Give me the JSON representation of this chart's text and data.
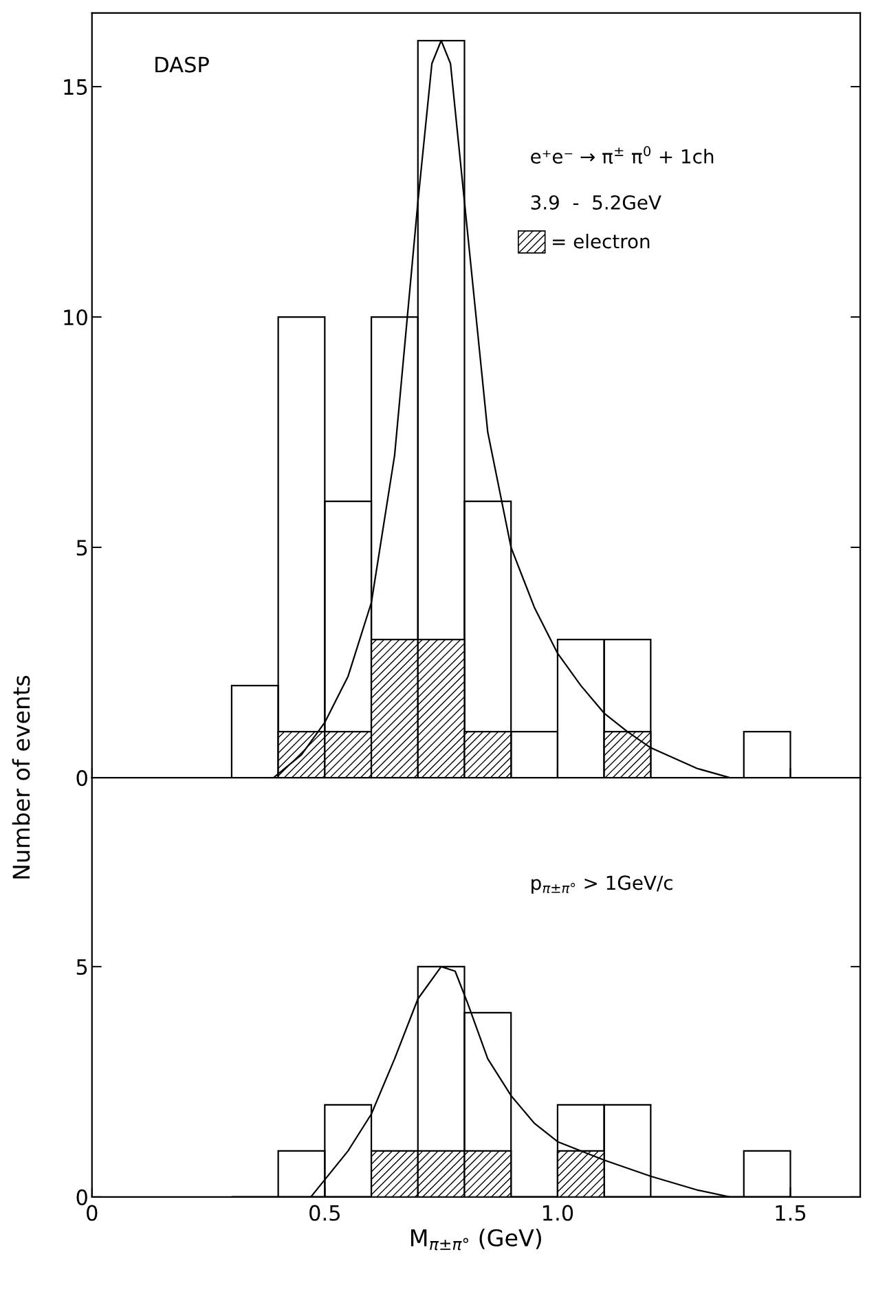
{
  "chart_data": [
    {
      "type": "histogram",
      "ylabel": "Number of events",
      "bins": [
        0.3,
        0.4,
        0.5,
        0.6,
        0.7,
        0.8,
        0.9,
        1.0,
        1.1,
        1.2,
        1.3,
        1.4,
        1.5
      ],
      "xlim": [
        0,
        1.65
      ],
      "ylim": [
        0,
        16.6
      ],
      "xticks": [
        {
          "value": 0,
          "label": null
        },
        {
          "value": 0.5,
          "label": null
        },
        {
          "value": 1.0,
          "label": null
        },
        {
          "value": 1.5,
          "label": null
        }
      ],
      "yticks": [
        0,
        5,
        10,
        15
      ],
      "tick_labels": "y",
      "grid": false,
      "legend": "top right",
      "marker": "none",
      "annotations": [
        "DASP",
        "e⁺e⁻ → π$^{±}$ π$^{0}$ + 1ch",
        "3.9  -  5.2GeV"
      ],
      "series": [
        {
          "type": "histogram",
          "color": "#000000",
          "values": [
            2,
            10,
            6,
            10,
            16,
            6,
            1,
            3,
            3,
            0,
            0,
            1
          ]
        },
        {
          "type": "histogram",
          "name": "= electron",
          "color": "#000000",
          "values": [
            0,
            1,
            1,
            3,
            3,
            1,
            0,
            0,
            1,
            0,
            0,
            0
          ]
        },
        {
          "type": "line",
          "color": "#000000",
          "x": [
            0.39,
            0.45,
            0.5,
            0.55,
            0.6,
            0.65,
            0.7,
            0.73,
            0.75,
            0.77,
            0.8,
            0.85,
            0.9,
            0.95,
            1.0,
            1.05,
            1.1,
            1.15,
            1.2,
            1.3,
            1.37
          ],
          "values": [
            0,
            0.5,
            1.2,
            2.2,
            3.8,
            7,
            12.5,
            15.5,
            16,
            15.5,
            12.5,
            7.5,
            5,
            3.7,
            2.7,
            2.0,
            1.4,
            1.0,
            0.65,
            0.2,
            0
          ]
        }
      ]
    },
    {
      "type": "histogram",
      "xlabel": "M$_{π±π°}$ (GeV)",
      "bins": [
        0.3,
        0.4,
        0.5,
        0.6,
        0.7,
        0.8,
        0.9,
        1.0,
        1.1,
        1.2,
        1.3,
        1.4,
        1.5
      ],
      "xlim": [
        0,
        1.65
      ],
      "ylim": [
        0,
        9.1
      ],
      "xticks": [
        {
          "value": 0,
          "label": "0"
        },
        {
          "value": 0.5,
          "label": "0.5"
        },
        {
          "value": 1.0,
          "label": "1.0"
        },
        {
          "value": 1.5,
          "label": "1.5"
        }
      ],
      "yticks": [
        0,
        5
      ],
      "grid": false,
      "marker": "none",
      "annotations": [
        "p$_{π±π°}$ > 1GeV/c"
      ],
      "series": [
        {
          "type": "histogram",
          "color": "#000000",
          "values": [
            0,
            1,
            2,
            null,
            5,
            4,
            0,
            2,
            2,
            0,
            0,
            1
          ]
        },
        {
          "type": "histogram",
          "color": "#000000",
          "values": [
            0,
            0,
            0,
            1,
            1,
            1,
            0,
            1,
            0,
            0,
            0,
            0
          ]
        },
        {
          "type": "line",
          "color": "#000000",
          "x": [
            0.47,
            0.55,
            0.6,
            0.65,
            0.7,
            0.75,
            0.78,
            0.807,
            0.85,
            0.9,
            0.95,
            1.0,
            1.1,
            1.2,
            1.3,
            1.37
          ],
          "values": [
            0,
            1.0,
            1.8,
            3.0,
            4.3,
            5.0,
            4.9,
            4.2,
            3.0,
            2.2,
            1.6,
            1.2,
            0.8,
            0.45,
            0.15,
            0
          ]
        }
      ]
    }
  ]
}
